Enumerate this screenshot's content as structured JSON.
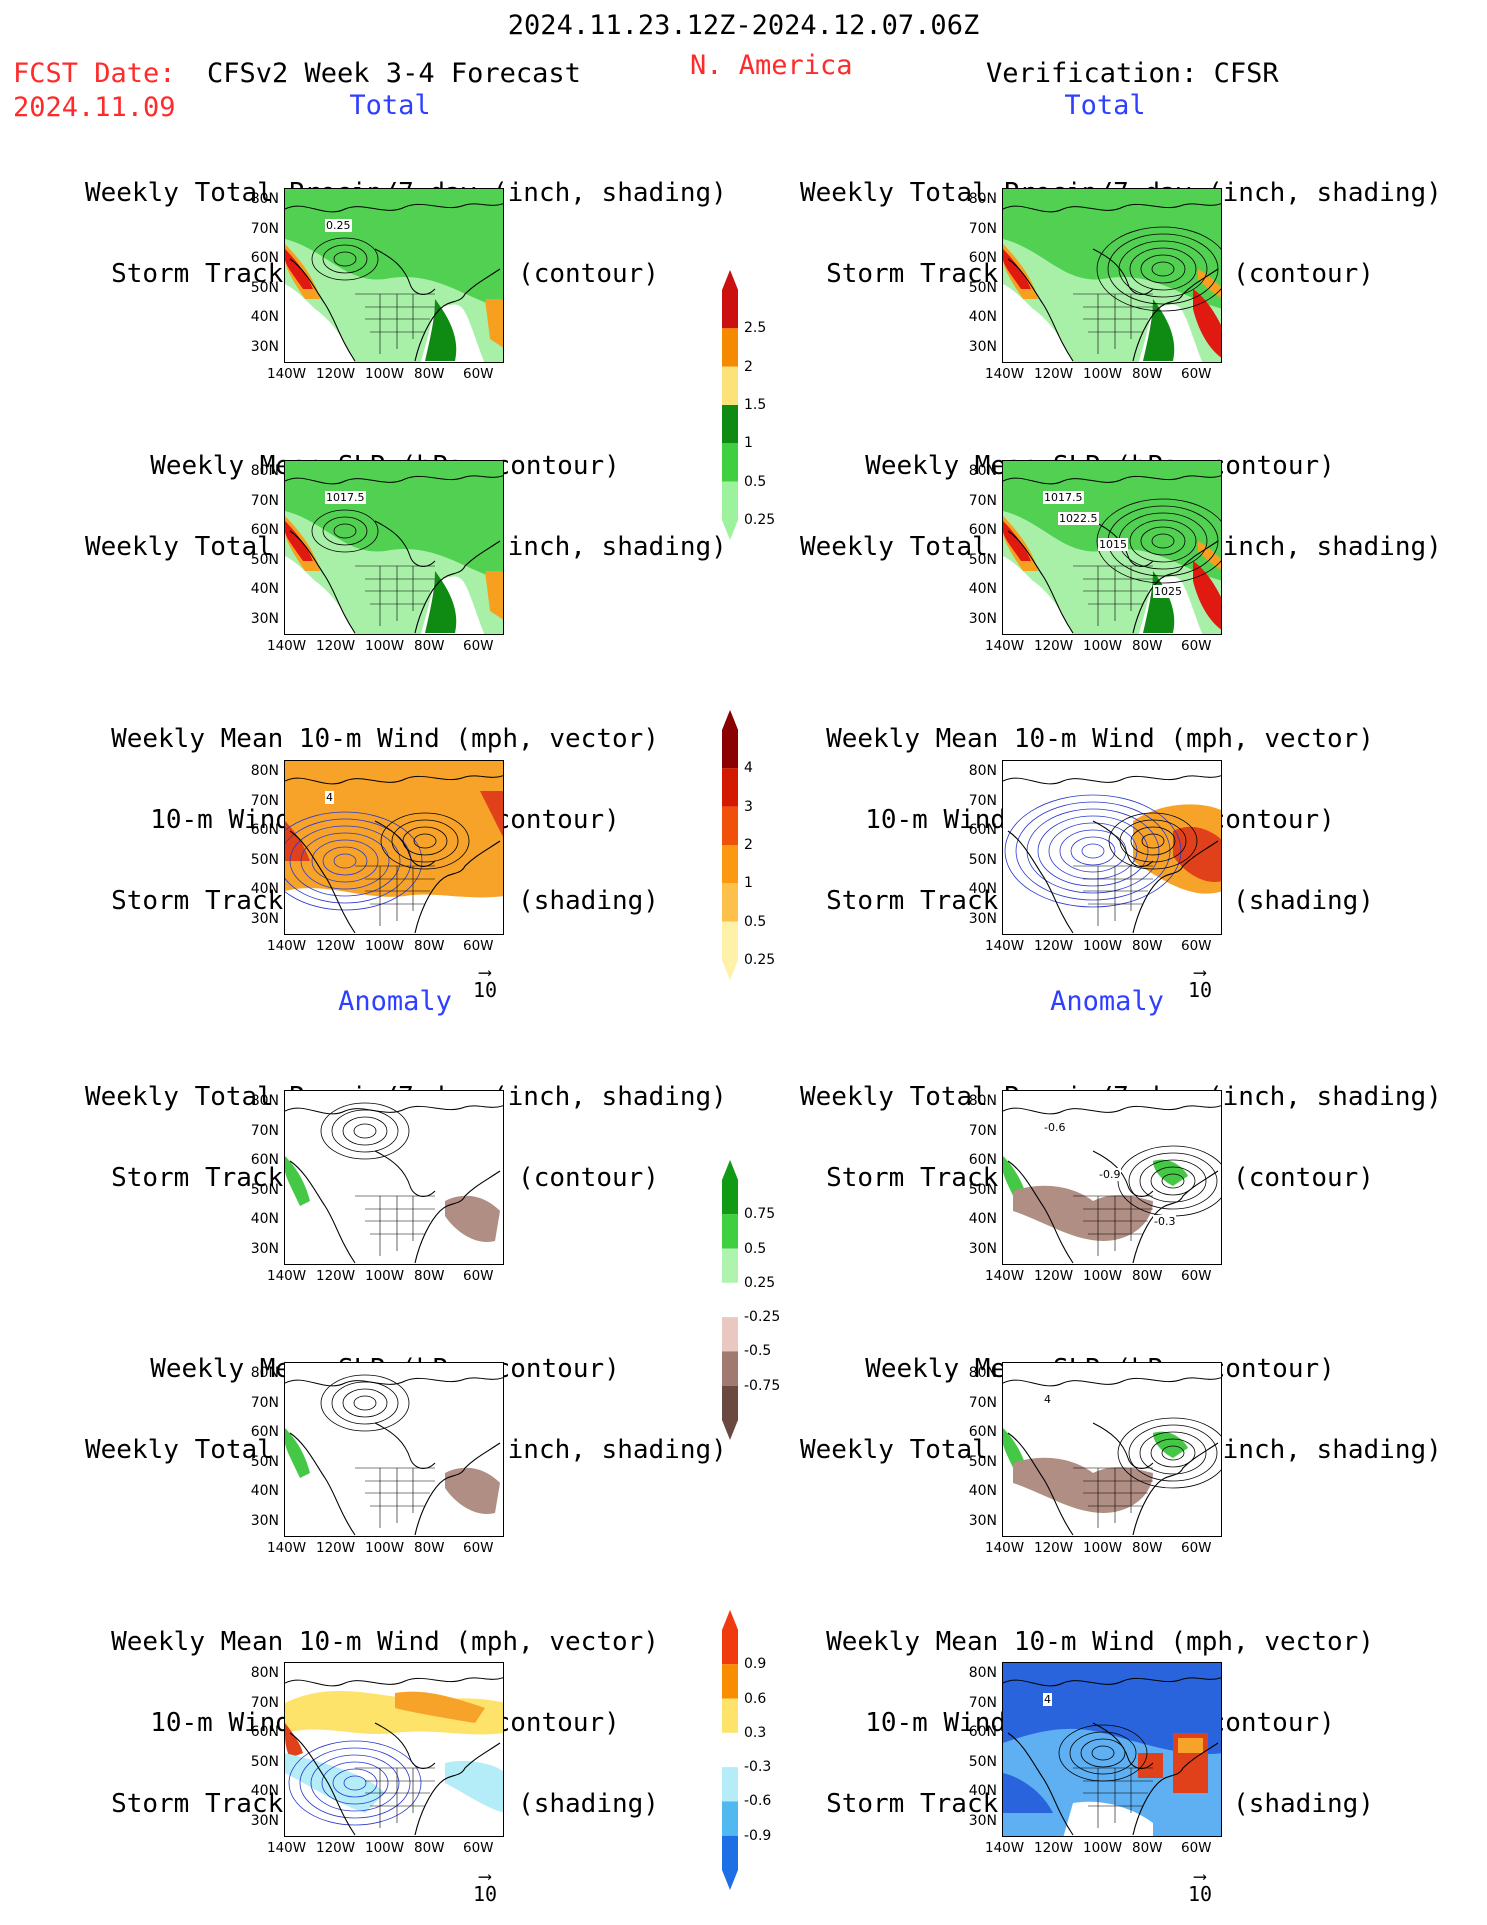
{
  "header": {
    "date_range": "2024.11.23.12Z-2024.12.07.06Z",
    "fcst_label": "FCST Date:",
    "fcst_date": "2024.11.09",
    "model": "CFSv2 Week 3-4 Forecast",
    "region": "N. America",
    "verification": "Verification: CFSR"
  },
  "sections": {
    "total": "Total",
    "anomaly": "Anomaly"
  },
  "titles": {
    "precip_storm": [
      "Weekly Total Precip/7-day (inch, shading)",
      "Storm Track Density/7-day (contour)"
    ],
    "slp_precip": [
      "Weekly Mean SLP (hPa, contour)",
      "Weekly Total Precip/7-day (inch, shading)"
    ],
    "wind_storm": [
      "Weekly Mean 10-m Wind (mph, vector)",
      "10-m Wind Speed (mph, contour)",
      "Storm Track Density/7-day (shading)"
    ]
  },
  "axes": {
    "lat": [
      "80N",
      "70N",
      "60N",
      "50N",
      "40N",
      "30N"
    ],
    "lon": [
      "140W",
      "120W",
      "100W",
      "80W",
      "60W"
    ]
  },
  "vector_ref": "10",
  "contour_labels": {
    "fc_total_precip": [
      "0.25"
    ],
    "fc_total_slp": [
      "1017.5"
    ],
    "fc_total_wind": [
      "4"
    ],
    "obs_total_slp": [
      "1017.5",
      "1015",
      "1025",
      "1022.5"
    ],
    "obs_anom_precip": [
      "-0.6",
      "-0.9",
      "-0.3"
    ],
    "obs_anom_slp": [
      "4"
    ],
    "obs_anom_wind": [
      "4"
    ]
  },
  "colorbars": {
    "precip_total": {
      "labels": [
        "2.5",
        "2",
        "1.5",
        "1",
        "0.5",
        "0.25"
      ],
      "colors": [
        "#cc1010",
        "#f58a00",
        "#fde279",
        "#0f8a12",
        "#3fd03f",
        "#9df29d"
      ]
    },
    "storm_total": {
      "labels": [
        "4",
        "3",
        "2",
        "1",
        "0.5",
        "0.25"
      ],
      "colors": [
        "#8b0000",
        "#d31a00",
        "#f0500a",
        "#fb9a10",
        "#fdc04a",
        "#fff1a8"
      ]
    },
    "precip_anomaly": {
      "labels": [
        "0.75",
        "0.5",
        "0.25",
        "-0.25",
        "-0.5",
        "-0.75"
      ],
      "colors": [
        "#119a13",
        "#3fd03f",
        "#aef4ae",
        "#ffffff",
        "#e8c8c0",
        "#a07a70",
        "#6a4a40"
      ]
    },
    "storm_anomaly": {
      "labels": [
        "0.9",
        "0.6",
        "0.3",
        "-0.3",
        "-0.6",
        "-0.9"
      ],
      "colors": [
        "#f03b10",
        "#fa8c00",
        "#fde36a",
        "#ffffff",
        "#b4ecf8",
        "#52b9f0",
        "#1e6fe6"
      ]
    }
  },
  "panel_colors": {
    "precip_fill": "#52d052",
    "precip_light": "#a8f0a8",
    "precip_dark": "#0f8a12",
    "precip_red": "#e01a10",
    "precip_orange": "#f7a020",
    "storm_orange": "#f7a32a",
    "storm_red": "#e0401a",
    "anom_brown": "#b08e84",
    "anom_green": "#45c845",
    "anom_blue": "#2a64dc",
    "anom_lightblue": "#5eb0f2"
  }
}
